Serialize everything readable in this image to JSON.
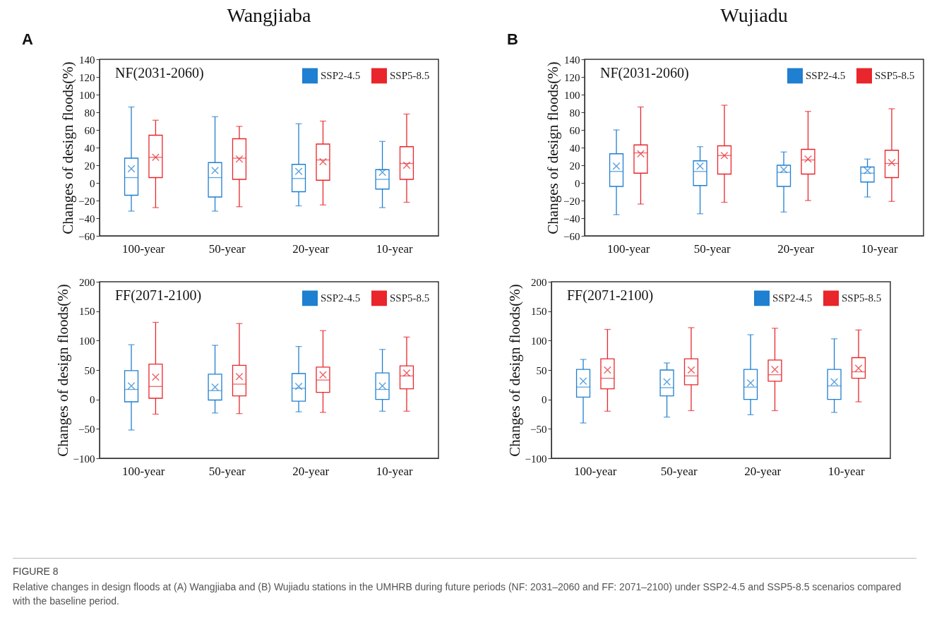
{
  "chart_data": [
    {
      "type": "box",
      "title": "Wangjiaba",
      "ylabel": "Changes of design floods(%)",
      "categories": [
        "100-year",
        "50-year",
        "20-year",
        "10-year"
      ],
      "ylim": [
        -60,
        140
      ],
      "yticks": [
        -60,
        -40,
        -20,
        0,
        20,
        40,
        60,
        80,
        100,
        120,
        140
      ],
      "legend": "top right",
      "marker": "cross",
      "grid": false,
      "annotations": [
        "NF(2031-2060)",
        "A"
      ],
      "series": [
        {
          "name": "SSP2-4.5",
          "color": "#1f7fd0",
          "boxes": [
            {
              "low": -32,
              "q1": -14,
              "median": 6,
              "q3": 28,
              "high": 86,
              "mean": 16
            },
            {
              "low": -32,
              "q1": -16,
              "median": 6,
              "q3": 23,
              "high": 75,
              "mean": 14
            },
            {
              "low": -26,
              "q1": -10,
              "median": 5,
              "q3": 21,
              "high": 67,
              "mean": 13
            },
            {
              "low": -28,
              "q1": -7,
              "median": 4,
              "q3": 15,
              "high": 47,
              "mean": 12
            }
          ]
        },
        {
          "name": "SSP5-8.5",
          "color": "#e8262b",
          "boxes": [
            {
              "low": -28,
              "q1": 6,
              "median": 29,
              "q3": 54,
              "high": 71,
              "mean": 29
            },
            {
              "low": -27,
              "q1": 4,
              "median": 28,
              "q3": 50,
              "high": 64,
              "mean": 27
            },
            {
              "low": -25,
              "q1": 3,
              "median": 26,
              "q3": 44,
              "high": 70,
              "mean": 24
            },
            {
              "low": -22,
              "q1": 4,
              "median": 22,
              "q3": 41,
              "high": 78,
              "mean": 20
            }
          ]
        }
      ]
    },
    {
      "type": "box",
      "title": "Wujiadu",
      "ylabel": "Changes of design floods(%)",
      "categories": [
        "100-year",
        "50-year",
        "20-year",
        "10-year"
      ],
      "ylim": [
        -60,
        140
      ],
      "yticks": [
        -60,
        -40,
        -20,
        0,
        20,
        40,
        60,
        80,
        100,
        120,
        140
      ],
      "legend": "top right",
      "marker": "cross",
      "grid": false,
      "annotations": [
        "NF(2031-2060)",
        "B"
      ],
      "series": [
        {
          "name": "SSP2-4.5",
          "color": "#1f7fd0",
          "boxes": [
            {
              "low": -36,
              "q1": -4,
              "median": 13,
              "q3": 33,
              "high": 60,
              "mean": 19
            },
            {
              "low": -35,
              "q1": -3,
              "median": 13,
              "q3": 25,
              "high": 41,
              "mean": 19
            },
            {
              "low": -33,
              "q1": -4,
              "median": 12,
              "q3": 20,
              "high": 35,
              "mean": 15
            },
            {
              "low": -16,
              "q1": 1,
              "median": 11,
              "q3": 18,
              "high": 27,
              "mean": 14
            }
          ]
        },
        {
          "name": "SSP5-8.5",
          "color": "#e8262b",
          "boxes": [
            {
              "low": -24,
              "q1": 11,
              "median": 34,
              "q3": 43,
              "high": 86,
              "mean": 33
            },
            {
              "low": -22,
              "q1": 10,
              "median": 31,
              "q3": 42,
              "high": 88,
              "mean": 31
            },
            {
              "low": -20,
              "q1": 10,
              "median": 26,
              "q3": 38,
              "high": 81,
              "mean": 27
            },
            {
              "low": -21,
              "q1": 6,
              "median": 22,
              "q3": 37,
              "high": 84,
              "mean": 23
            }
          ]
        }
      ]
    },
    {
      "type": "box",
      "ylabel": "Changes of design floods(%)",
      "categories": [
        "100-year",
        "50-year",
        "20-year",
        "10-year"
      ],
      "ylim": [
        -100,
        200
      ],
      "yticks": [
        -100,
        -50,
        0,
        50,
        100,
        150,
        200
      ],
      "legend": "top right",
      "marker": "cross",
      "grid": false,
      "annotations": [
        "FF(2071-2100)"
      ],
      "series": [
        {
          "name": "SSP2-4.5",
          "color": "#1f7fd0",
          "boxes": [
            {
              "low": -52,
              "q1": -4,
              "median": 17,
              "q3": 49,
              "high": 93,
              "mean": 23
            },
            {
              "low": -23,
              "q1": -1,
              "median": 15,
              "q3": 43,
              "high": 92,
              "mean": 21
            },
            {
              "low": -21,
              "q1": -3,
              "median": 19,
              "q3": 44,
              "high": 90,
              "mean": 22
            },
            {
              "low": -20,
              "q1": 0,
              "median": 17,
              "q3": 45,
              "high": 85,
              "mean": 23
            }
          ]
        },
        {
          "name": "SSP5-8.5",
          "color": "#e8262b",
          "boxes": [
            {
              "low": -25,
              "q1": 2,
              "median": 22,
              "q3": 60,
              "high": 131,
              "mean": 38
            },
            {
              "low": -24,
              "q1": 6,
              "median": 26,
              "q3": 58,
              "high": 129,
              "mean": 39
            },
            {
              "low": -22,
              "q1": 12,
              "median": 33,
              "q3": 55,
              "high": 117,
              "mean": 42
            },
            {
              "low": -20,
              "q1": 18,
              "median": 40,
              "q3": 57,
              "high": 106,
              "mean": 45
            }
          ]
        }
      ]
    },
    {
      "type": "box",
      "ylabel": "Changes of design floods(%)",
      "categories": [
        "100-year",
        "50-year",
        "20-year",
        "10-year"
      ],
      "ylim": [
        -100,
        200
      ],
      "yticks": [
        -100,
        -50,
        0,
        50,
        100,
        150,
        200
      ],
      "legend": "top right",
      "marker": "cross",
      "grid": false,
      "annotations": [
        "FF(2071-2100)",
        "FIGURE 8",
        "Relative changes in design floods at (A) Wangjiaba and (B) Wujiadu stations in the UMHRB during future periods (NF: 2031–2060 and FF: 2071–2100) under SSP2-4.5 and SSP5-8.5 scenarios compared with the baseline period."
      ],
      "series": [
        {
          "name": "SSP2-4.5",
          "color": "#1f7fd0",
          "boxes": [
            {
              "low": -40,
              "q1": 4,
              "median": 21,
              "q3": 51,
              "high": 68,
              "mean": 31
            },
            {
              "low": -30,
              "q1": 6,
              "median": 20,
              "q3": 50,
              "high": 62,
              "mean": 30
            },
            {
              "low": -26,
              "q1": 0,
              "median": 21,
              "q3": 51,
              "high": 110,
              "mean": 28
            },
            {
              "low": -22,
              "q1": 0,
              "median": 23,
              "q3": 51,
              "high": 103,
              "mean": 30
            }
          ]
        },
        {
          "name": "SSP5-8.5",
          "color": "#e8262b",
          "boxes": [
            {
              "low": -20,
              "q1": 18,
              "median": 36,
              "q3": 69,
              "high": 119,
              "mean": 50
            },
            {
              "low": -19,
              "q1": 25,
              "median": 40,
              "q3": 69,
              "high": 122,
              "mean": 50
            },
            {
              "low": -19,
              "q1": 31,
              "median": 42,
              "q3": 67,
              "high": 121,
              "mean": 51
            },
            {
              "low": -4,
              "q1": 36,
              "median": 47,
              "q3": 71,
              "high": 118,
              "mean": 53
            }
          ]
        }
      ]
    }
  ]
}
